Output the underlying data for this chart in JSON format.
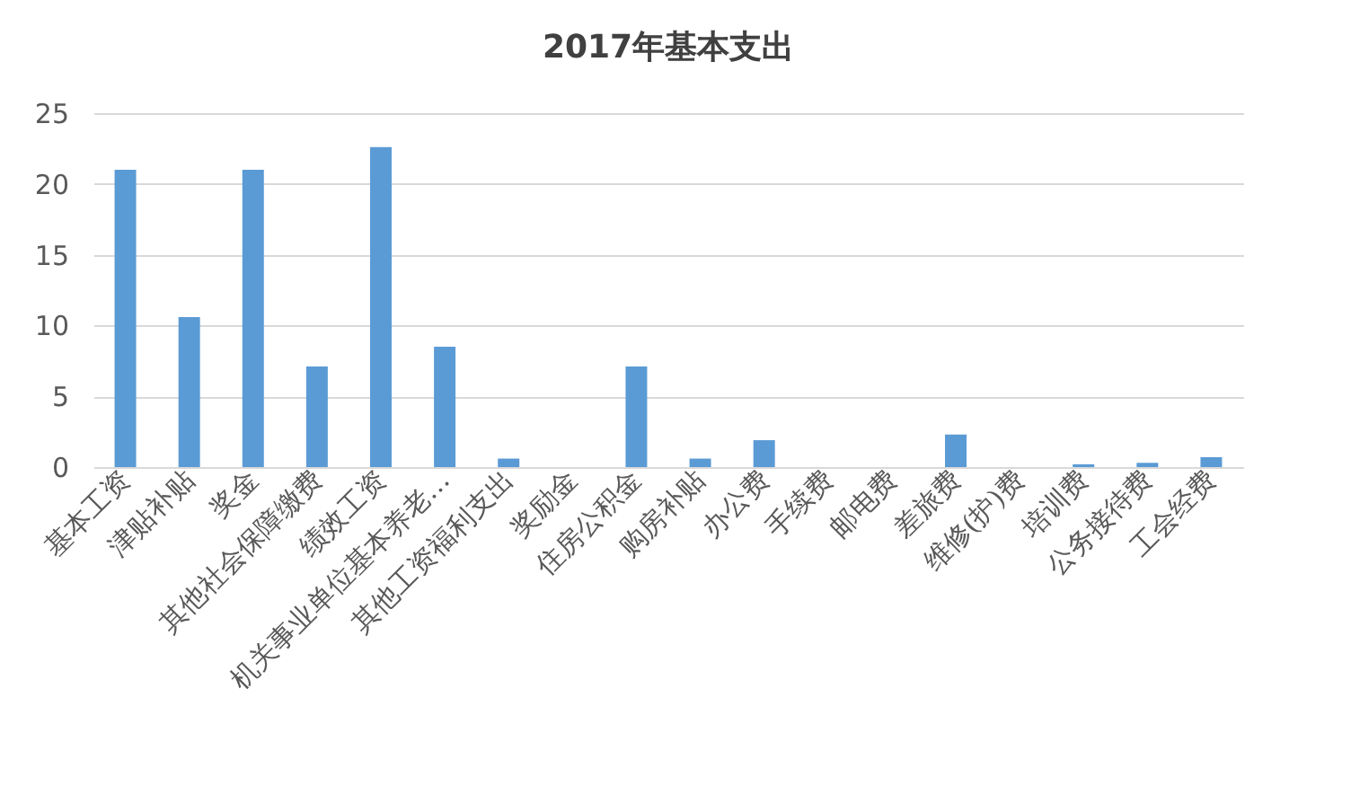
{
  "chart_data": {
    "type": "bar",
    "title": "2017年基本支出",
    "categories": [
      "基本工资",
      "津贴补贴",
      "奖金",
      "其他社会保障缴费",
      "绩效工资",
      "机关事业单位基本养老…",
      "其他工资福利支出",
      "奖励金",
      "住房公积金",
      "购房补贴",
      "办公费",
      "手续费",
      "邮电费",
      "差旅费",
      "维修(护)费",
      "培训费",
      "公务接待费",
      "工会经费"
    ],
    "values": [
      21.0,
      10.6,
      21.0,
      7.1,
      22.6,
      8.5,
      0.6,
      0,
      7.1,
      0.6,
      1.9,
      0,
      0,
      2.3,
      0,
      0.2,
      0.3,
      0.7
    ],
    "color": "#5b9bd5",
    "ylim": [
      0,
      25
    ],
    "yticks": [
      0,
      5,
      10,
      15,
      20,
      25
    ],
    "grid": "y"
  }
}
